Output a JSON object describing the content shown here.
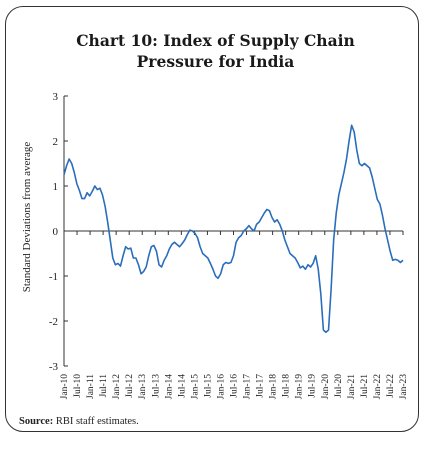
{
  "title_line1": "Chart 10: Index of Supply Chain",
  "title_line2": "Pressure for India",
  "source_label": "Source:",
  "source_text": "RBI staff estimates.",
  "chart_data": {
    "type": "line",
    "title": "Chart 10: Index of Supply Chain Pressure for India",
    "ylabel": "Standard Deviations from average",
    "xlabel": "",
    "ylim": [
      -3,
      3
    ],
    "yticks": [
      3,
      2,
      1,
      0,
      -1,
      -2,
      -3
    ],
    "xticks": [
      "Jan-10",
      "Jul-10",
      "Jan-11",
      "Jul-11",
      "Jan-12",
      "Jul-12",
      "Jan-13",
      "Jul-13",
      "Jan-14",
      "Jul-14",
      "Jan-15",
      "Jul-15",
      "Jan-16",
      "Jul-16",
      "Jan-17",
      "Jul-17",
      "Jan-18",
      "Jul-18",
      "Jan-19",
      "Jul-19",
      "Jan-20",
      "Jul-20",
      "Jan-21",
      "Jul-21",
      "Jan-22",
      "Jul-22",
      "Jan-23"
    ],
    "line_color": "#2a6ebb",
    "grid": false,
    "series": [
      {
        "values": [
          1.25,
          1.45,
          1.6,
          1.5,
          1.3,
          1.05,
          0.9,
          0.72,
          0.72,
          0.85,
          0.78,
          0.88,
          1.0,
          0.92,
          0.95,
          0.8,
          0.55,
          0.2,
          -0.2,
          -0.6,
          -0.75,
          -0.72,
          -0.78,
          -0.55,
          -0.35,
          -0.4,
          -0.38,
          -0.6,
          -0.6,
          -0.75,
          -0.95,
          -0.9,
          -0.8,
          -0.55,
          -0.35,
          -0.32,
          -0.45,
          -0.75,
          -0.8,
          -0.65,
          -0.55,
          -0.4,
          -0.3,
          -0.25,
          -0.3,
          -0.35,
          -0.28,
          -0.2,
          -0.08,
          0.02,
          0.0,
          -0.05,
          -0.15,
          -0.35,
          -0.5,
          -0.55,
          -0.6,
          -0.72,
          -0.85,
          -1.0,
          -1.05,
          -0.95,
          -0.75,
          -0.7,
          -0.72,
          -0.7,
          -0.55,
          -0.25,
          -0.15,
          -0.1,
          0.0,
          0.05,
          0.12,
          0.05,
          0.0,
          0.15,
          0.2,
          0.3,
          0.4,
          0.48,
          0.45,
          0.3,
          0.2,
          0.25,
          0.15,
          0.0,
          -0.2,
          -0.35,
          -0.5,
          -0.55,
          -0.6,
          -0.7,
          -0.82,
          -0.78,
          -0.85,
          -0.75,
          -0.8,
          -0.72,
          -0.55,
          -0.85,
          -1.4,
          -2.2,
          -2.25,
          -2.2,
          -1.3,
          -0.2,
          0.4,
          0.8,
          1.05,
          1.3,
          1.6,
          2.0,
          2.35,
          2.2,
          1.8,
          1.5,
          1.45,
          1.5,
          1.45,
          1.4,
          1.2,
          0.95,
          0.7,
          0.6,
          0.35,
          0.05,
          -0.2,
          -0.45,
          -0.65,
          -0.63,
          -0.65,
          -0.7,
          -0.65
        ]
      }
    ]
  }
}
